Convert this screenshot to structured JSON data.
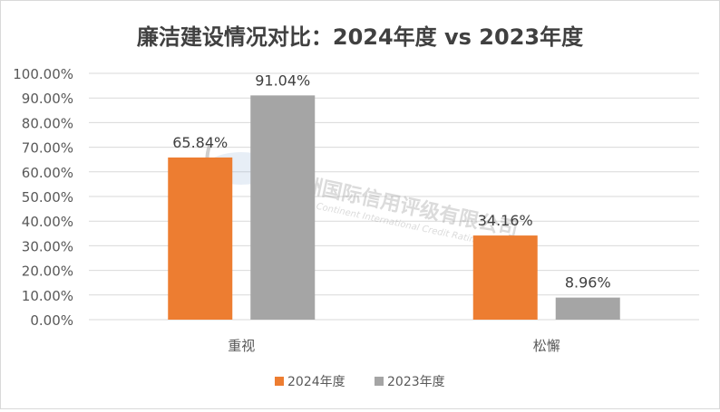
{
  "chart_data": {
    "type": "bar",
    "title": "廉洁建设情况对比：2024年度 vs 2023年度",
    "categories": [
      "重视",
      "松懈"
    ],
    "series": [
      {
        "name": "2024年度",
        "values": [
          65.84,
          34.16
        ],
        "labels": [
          "65.84%",
          "34.16%"
        ],
        "color": "#ed7d31"
      },
      {
        "name": "2023年度",
        "values": [
          91.04,
          8.96
        ],
        "labels": [
          "91.04%",
          "8.96%"
        ],
        "color": "#a5a5a5"
      }
    ],
    "ylim": [
      0,
      100
    ],
    "yticks": [
      0,
      10,
      20,
      30,
      40,
      50,
      60,
      70,
      80,
      90,
      100
    ],
    "ytick_labels": [
      "0.00%",
      "10.00%",
      "20.00%",
      "30.00%",
      "40.00%",
      "50.00%",
      "60.00%",
      "70.00%",
      "80.00%",
      "90.00%",
      "100.00%"
    ],
    "xlabel": "",
    "ylabel": "",
    "grid": true,
    "legend": "bottom"
  },
  "watermark": {
    "cn": "联洲国际信用评级有限公司",
    "en": "United Continent International Credit Rating Co.,Ltd"
  }
}
